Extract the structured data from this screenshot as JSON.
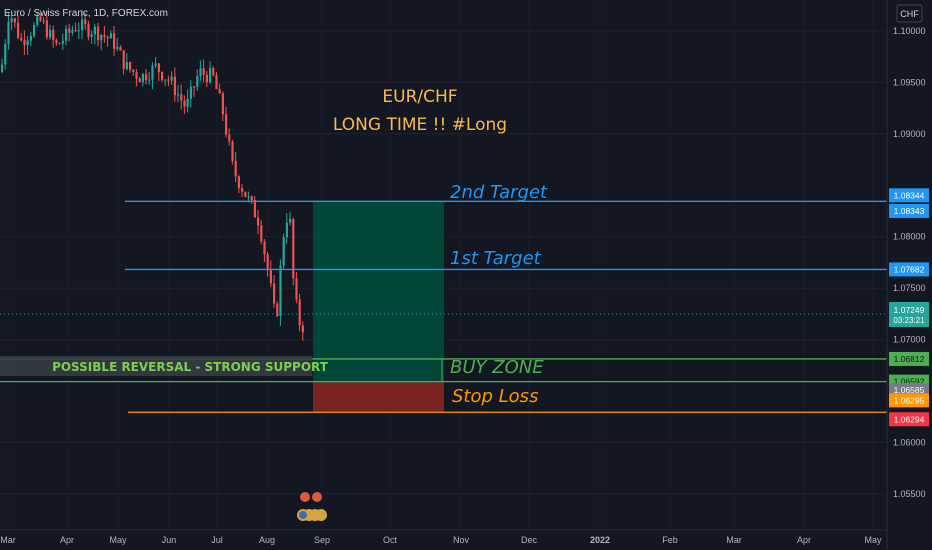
{
  "header": {
    "symbol_desc": "Euro / Swiss Franc, 1D, FOREX.com",
    "currency_button": "CHF"
  },
  "annotations": {
    "title_line1": "EUR/CHF",
    "title_line2": "LONG TIME !! #Long",
    "target2": "2nd Target",
    "target1": "1st Target",
    "buy_zone": "BUY ZONE",
    "stop_loss": "Stop Loss",
    "support_label": "POSSIBLE REVERSAL - STRONG SUPPORT"
  },
  "colors": {
    "background": "#131722",
    "target_line": "#2196f3",
    "buy_zone_line": "#4caf50",
    "stop_line": "#ff9800",
    "bull": "#26a69a",
    "bear": "#ef5350",
    "profit_zone": "#00473a",
    "loss_zone": "#7a2420",
    "title_text": "#ffb74d",
    "support_text": "#7cd04f"
  },
  "chart_data": {
    "type": "candlestick",
    "x_ticks": [
      "Mar",
      "Apr",
      "May",
      "Jun",
      "Jul",
      "Aug",
      "Sep",
      "Oct",
      "Nov",
      "Dec",
      "2022",
      "Feb",
      "Mar",
      "Apr",
      "May"
    ],
    "y_ticks": [
      "1.10000",
      "1.09500",
      "1.09000",
      "1.08000",
      "1.07500",
      "1.07000",
      "1.06000",
      "1.05500"
    ],
    "ylim": [
      1.0515,
      1.103
    ],
    "levels": [
      {
        "id": "target2",
        "price": 1.08344,
        "label": "1.08344"
      },
      {
        "id": "target1",
        "price": 1.07682,
        "label": "1.07682"
      },
      {
        "id": "buy_top",
        "price": 1.06812,
        "label": "1.06812"
      },
      {
        "id": "buy_bottom",
        "price": 1.06592,
        "label": "1.06592"
      },
      {
        "id": "stop",
        "price": 1.06294,
        "label": "1.06294"
      }
    ],
    "price_labels": [
      {
        "text": "1.08343",
        "price": 1.0825,
        "color": "#2196f3"
      },
      {
        "text": "1.06585",
        "price": 1.0651,
        "color": "#787b86"
      },
      {
        "text": "1.06295",
        "price": 1.0641,
        "color": "#ff9800"
      }
    ],
    "current_price": {
      "price": 1.07249,
      "label": "1.07249",
      "countdown": "03:23:21"
    },
    "position": {
      "entry": 1.06592,
      "target": 1.08344,
      "stop": 1.06294
    },
    "series": [
      {
        "date": "Mar",
        "close": 1.096
      },
      {
        "date": "Apr",
        "close": 1.101
      },
      {
        "date": "May",
        "close": 1.099
      },
      {
        "date": "Jun",
        "close": 1.0945
      },
      {
        "date": "Jul",
        "close": 1.086
      },
      {
        "date": "Aug",
        "close": 1.0795
      },
      {
        "date": "Aug",
        "close": 1.0715
      }
    ]
  }
}
